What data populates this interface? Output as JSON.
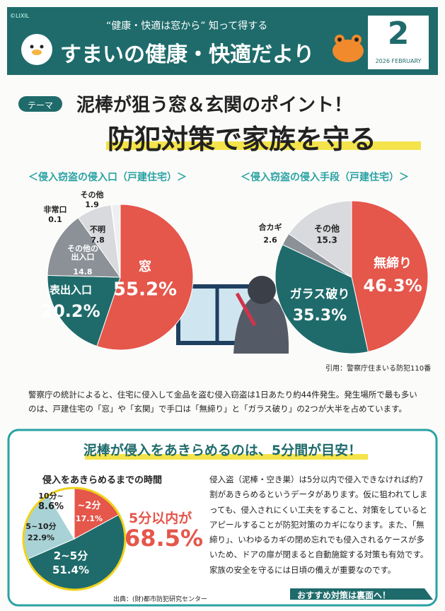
{
  "header": {
    "brand": "©LIXIL",
    "tagline": "“健康・快適は窓から” 知って得する",
    "title": "すまいの健康・快適だより",
    "issue": "2",
    "date": "2026 FEBRUARY"
  },
  "theme": {
    "tag": "テーマ",
    "headline": "泥棒が狙う窓＆玄関のポイント！",
    "title": "防犯対策で家族を守る"
  },
  "pies": [
    {
      "title": "＜侵入窃盗の侵入口（戸建住宅）＞",
      "slices": [
        {
          "name": "窓",
          "value": 55.2,
          "value_label": "55.2%",
          "color": "#e5564b"
        },
        {
          "name": "表出入口",
          "value": 20.2,
          "value_label": "20.2%",
          "color": "#1f6b6b"
        },
        {
          "name": "その他の出入口",
          "value": 14.8,
          "color": "#8c9097"
        },
        {
          "name": "不明",
          "value": 7.8,
          "color": "#d8dadd"
        },
        {
          "name": "非常口",
          "value": 0.1,
          "color": "#555a60"
        },
        {
          "name": "その他",
          "value": 1.9,
          "color": "#eeeff0"
        }
      ]
    },
    {
      "title": "＜侵入窃盗の侵入手段（戸建住宅）＞",
      "slices": [
        {
          "name": "無締り",
          "value": 46.3,
          "value_label": "46.3%",
          "color": "#e5564b"
        },
        {
          "name": "ガラス破り",
          "value": 35.3,
          "value_label": "35.3%",
          "color": "#1f6b6b"
        },
        {
          "name": "合カギ",
          "value": 2.6,
          "color": "#8c9097"
        },
        {
          "name": "その他",
          "value": 15.3,
          "color": "#d8dadd"
        }
      ]
    },
    {
      "title": "侵入をあきらめるまでの時間",
      "slices": [
        {
          "name": "~2分",
          "value": 17.1,
          "value_label": "17.1%",
          "color": "#e5564b"
        },
        {
          "name": "2~5分",
          "value": 51.4,
          "value_label": "51.4%",
          "color": "#1f6b6b"
        },
        {
          "name": "5~10分",
          "value": 22.9,
          "value_label": "22.9%",
          "color": "#a8d2d6"
        },
        {
          "name": "10分~",
          "value": 8.6,
          "value_label": "8.6%",
          "color": "#ffffff"
        }
      ]
    }
  ],
  "source1": "引用：警察庁住まいる防犯110番",
  "intro": "警察庁の統計によると、住宅に侵入して金品を盗む侵入窃盗は1日あたり約44件発生。発生場所で最も多いのは、戸建住宅の「窓」や「玄関」で手口は「無締り」と「ガラス破り」の2つが大半を占めています。",
  "section": {
    "title": "泥棒が侵入をあきらめるのは、5分間が目安！",
    "callout_label": "5分以内が",
    "callout_value": "68.5%",
    "source": "出典：(財)都市防犯研究センター",
    "body": "侵入盗（泥棒・空き巣）は5分以内で侵入できなければ約7割があきらめるというデータがあります。仮に狙われてしまっても、侵入されにくい工夫をすること、対策をしているとアピールすることが防犯対策のカギになります。また、「無締り」、いわゆるカギの閉め忘れでも侵入されるケースが多いため、ドアの扉が閉まると自動施錠する対策も有効です。家族の安全を守るには日頃の備えが重要なのです。",
    "button": "おすすめ対策は裏面へ！"
  }
}
